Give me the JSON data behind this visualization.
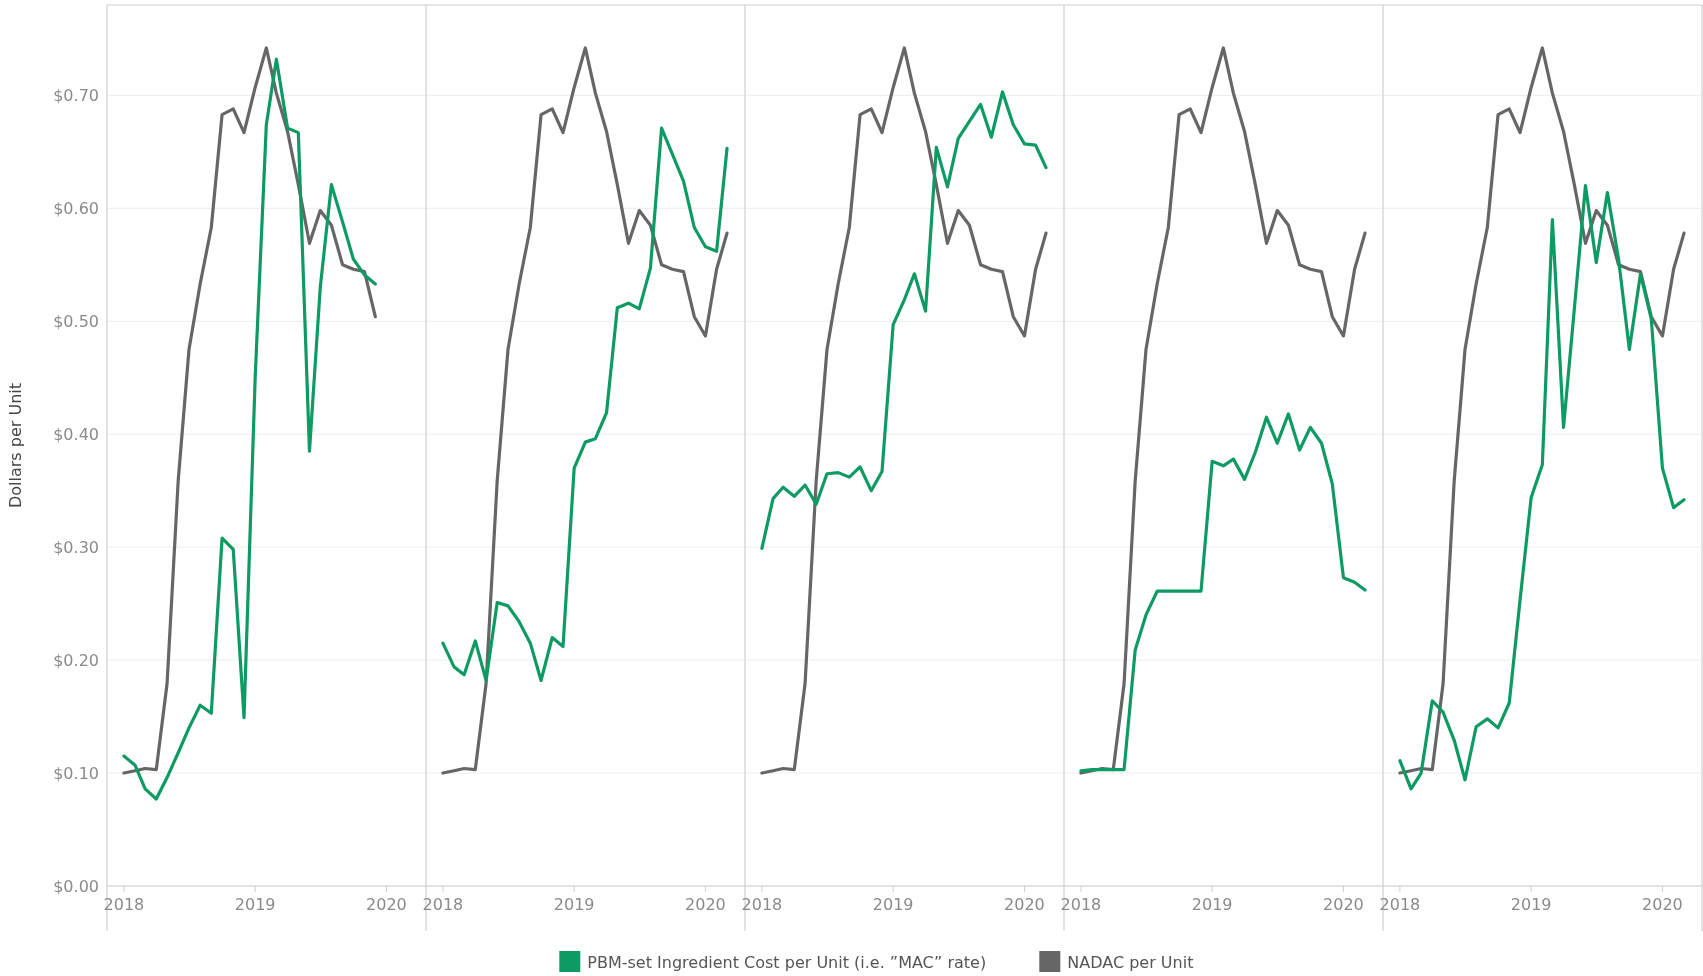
{
  "chart_data": [
    {
      "type": "line",
      "ylabel": "Dollars per Unit",
      "legend": "bottom",
      "grid": "y",
      "xlim": [
        "2017-11-15",
        "2020-04-20"
      ],
      "xticks": [
        "2018",
        "2019",
        "2020"
      ],
      "ylim": [
        0,
        0.78
      ],
      "yticks": [
        {
          "value": 0,
          "label": "$0.00"
        },
        {
          "value": 0.1,
          "label": "$0.10"
        },
        {
          "value": 0.2,
          "label": "$0.20"
        },
        {
          "value": 0.3,
          "label": "$0.30"
        },
        {
          "value": 0.4,
          "label": "$0.40"
        },
        {
          "value": 0.5,
          "label": "$0.50"
        },
        {
          "value": 0.6,
          "label": "$0.60"
        },
        {
          "value": 0.7,
          "label": "$0.70"
        }
      ],
      "x": [
        "2018-01",
        "2018-02",
        "2018-03",
        "2018-04",
        "2018-05",
        "2018-06",
        "2018-07",
        "2018-08",
        "2018-09",
        "2018-10",
        "2018-11",
        "2018-12",
        "2019-01",
        "2019-02",
        "2019-03",
        "2019-04",
        "2019-05",
        "2019-06",
        "2019-07",
        "2019-08",
        "2019-09",
        "2019-10",
        "2019-11",
        "2019-12"
      ],
      "series": [
        {
          "name": "NADAC per Unit",
          "color": "#666666",
          "values": [
            0.1,
            0.102,
            0.104,
            0.103,
            0.179,
            0.359,
            0.475,
            0.533,
            0.583,
            0.683,
            0.688,
            0.667,
            0.707,
            0.742,
            0.702,
            0.668,
            0.621,
            0.569,
            0.598,
            0.585,
            0.55,
            0.546,
            0.544,
            0.504
          ]
        },
        {
          "name": "PBM-set Ingredient Cost per Unit (i.e. ”MAC” rate)",
          "color": "#0e9a63",
          "values": [
            0.115,
            0.107,
            0.086,
            0.077,
            0.096,
            0.118,
            0.14,
            0.16,
            0.153,
            0.308,
            0.298,
            0.149,
            0.45,
            0.674,
            0.732,
            0.671,
            0.667,
            0.385,
            0.53,
            0.621,
            0.588,
            0.555,
            0.541,
            0.533
          ]
        }
      ]
    },
    {
      "type": "line",
      "tick_labels": "x",
      "grid": "y",
      "xlim": [
        "2017-11-15",
        "2020-04-20"
      ],
      "xticks": [
        "2018",
        "2019",
        "2020"
      ],
      "ylim": [
        0,
        0.78
      ],
      "yticks": [
        0,
        0.1,
        0.2,
        0.3,
        0.4,
        0.5,
        0.6,
        0.7
      ],
      "x": [
        "2018-01",
        "2018-02",
        "2018-03",
        "2018-04",
        "2018-05",
        "2018-06",
        "2018-07",
        "2018-08",
        "2018-09",
        "2018-10",
        "2018-11",
        "2018-12",
        "2019-01",
        "2019-02",
        "2019-03",
        "2019-04",
        "2019-05",
        "2019-06",
        "2019-07",
        "2019-08",
        "2019-09",
        "2019-10",
        "2019-11",
        "2019-12",
        "2020-01",
        "2020-02",
        "2020-03"
      ],
      "series": [
        {
          "color": "#666666",
          "values": [
            0.1,
            0.102,
            0.104,
            0.103,
            0.179,
            0.359,
            0.475,
            0.533,
            0.583,
            0.683,
            0.688,
            0.667,
            0.707,
            0.742,
            0.702,
            0.668,
            0.621,
            0.569,
            0.598,
            0.585,
            0.55,
            0.546,
            0.544,
            0.504,
            0.487,
            0.546,
            0.578
          ]
        },
        {
          "color": "#0e9a63",
          "values": [
            0.215,
            0.194,
            0.187,
            0.217,
            0.182,
            0.251,
            0.248,
            0.234,
            0.215,
            0.182,
            0.22,
            0.212,
            0.37,
            0.393,
            0.396,
            0.419,
            0.512,
            0.516,
            0.511,
            0.547,
            0.671,
            0.648,
            0.624,
            0.583,
            0.566,
            0.562,
            0.653
          ]
        }
      ]
    },
    {
      "type": "line",
      "tick_labels": "x",
      "grid": "y",
      "xlim": [
        "2017-11-15",
        "2020-04-20"
      ],
      "xticks": [
        "2018",
        "2019",
        "2020"
      ],
      "ylim": [
        0,
        0.78
      ],
      "yticks": [
        0,
        0.1,
        0.2,
        0.3,
        0.4,
        0.5,
        0.6,
        0.7
      ],
      "x": [
        "2018-01",
        "2018-02",
        "2018-03",
        "2018-04",
        "2018-05",
        "2018-06",
        "2018-07",
        "2018-08",
        "2018-09",
        "2018-10",
        "2018-11",
        "2018-12",
        "2019-01",
        "2019-02",
        "2019-03",
        "2019-04",
        "2019-05",
        "2019-06",
        "2019-07",
        "2019-08",
        "2019-09",
        "2019-10",
        "2019-11",
        "2019-12",
        "2020-01",
        "2020-02",
        "2020-03"
      ],
      "series": [
        {
          "color": "#666666",
          "values": [
            0.1,
            0.102,
            0.104,
            0.103,
            0.179,
            0.359,
            0.475,
            0.533,
            0.583,
            0.683,
            0.688,
            0.667,
            0.707,
            0.742,
            0.702,
            0.668,
            0.621,
            0.569,
            0.598,
            0.585,
            0.55,
            0.546,
            0.544,
            0.504,
            0.487,
            0.546,
            0.578
          ]
        },
        {
          "color": "#0e9a63",
          "values": [
            0.299,
            0.343,
            0.353,
            0.345,
            0.355,
            0.338,
            0.365,
            0.366,
            0.362,
            0.371,
            0.35,
            0.367,
            0.497,
            0.519,
            0.542,
            0.509,
            0.654,
            0.619,
            0.662,
            0.677,
            0.692,
            0.663,
            0.703,
            0.674,
            0.657,
            0.656,
            0.636
          ]
        }
      ]
    },
    {
      "type": "line",
      "tick_labels": "x",
      "grid": "y",
      "xlim": [
        "2017-11-15",
        "2020-04-20"
      ],
      "xticks": [
        "2018",
        "2019",
        "2020"
      ],
      "ylim": [
        0,
        0.78
      ],
      "yticks": [
        0,
        0.1,
        0.2,
        0.3,
        0.4,
        0.5,
        0.6,
        0.7
      ],
      "x": [
        "2018-01",
        "2018-02",
        "2018-03",
        "2018-04",
        "2018-05",
        "2018-06",
        "2018-07",
        "2018-08",
        "2018-09",
        "2018-10",
        "2018-11",
        "2018-12",
        "2019-01",
        "2019-02",
        "2019-03",
        "2019-04",
        "2019-05",
        "2019-06",
        "2019-07",
        "2019-08",
        "2019-09",
        "2019-10",
        "2019-11",
        "2019-12",
        "2020-01",
        "2020-02",
        "2020-03"
      ],
      "series": [
        {
          "color": "#666666",
          "values": [
            0.1,
            0.102,
            0.104,
            0.103,
            0.179,
            0.359,
            0.475,
            0.533,
            0.583,
            0.683,
            0.688,
            0.667,
            0.707,
            0.742,
            0.702,
            0.668,
            0.621,
            0.569,
            0.598,
            0.585,
            0.55,
            0.546,
            0.544,
            0.504,
            0.487,
            0.546,
            0.578
          ]
        },
        {
          "color": "#0e9a63",
          "values": [
            0.102,
            0.103,
            0.103,
            0.103,
            0.103,
            0.209,
            0.24,
            0.261,
            0.261,
            0.261,
            0.261,
            0.261,
            0.376,
            0.372,
            0.378,
            0.36,
            0.384,
            0.415,
            0.392,
            0.418,
            0.386,
            0.406,
            0.392,
            0.356,
            0.273,
            0.269,
            0.262
          ]
        }
      ]
    },
    {
      "type": "line",
      "tick_labels": "x",
      "grid": "y",
      "xlim": [
        "2017-11-15",
        "2020-04-20"
      ],
      "xticks": [
        "2018",
        "2019",
        "2020"
      ],
      "ylim": [
        0,
        0.78
      ],
      "yticks": [
        0,
        0.1,
        0.2,
        0.3,
        0.4,
        0.5,
        0.6,
        0.7
      ],
      "x": [
        "2018-01",
        "2018-02",
        "2018-03",
        "2018-04",
        "2018-05",
        "2018-06",
        "2018-07",
        "2018-08",
        "2018-09",
        "2018-10",
        "2018-11",
        "2018-12",
        "2019-01",
        "2019-02",
        "2019-03",
        "2019-04",
        "2019-05",
        "2019-06",
        "2019-07",
        "2019-08",
        "2019-09",
        "2019-10",
        "2019-11",
        "2019-12",
        "2020-01",
        "2020-02",
        "2020-03"
      ],
      "series": [
        {
          "color": "#666666",
          "values": [
            0.1,
            0.102,
            0.104,
            0.103,
            0.179,
            0.359,
            0.475,
            0.533,
            0.583,
            0.683,
            0.688,
            0.667,
            0.707,
            0.742,
            0.702,
            0.668,
            0.621,
            0.569,
            0.598,
            0.585,
            0.55,
            0.546,
            0.544,
            0.504,
            0.487,
            0.546,
            0.578
          ]
        },
        {
          "color": "#0e9a63",
          "values": [
            0.111,
            0.086,
            0.1,
            0.164,
            0.154,
            0.129,
            0.094,
            0.141,
            0.148,
            0.14,
            0.162,
            0.253,
            0.344,
            0.373,
            0.59,
            0.406,
            0.511,
            0.62,
            0.552,
            0.614,
            0.555,
            0.475,
            0.542,
            0.502,
            0.37,
            0.335,
            0.342
          ]
        }
      ]
    }
  ]
}
